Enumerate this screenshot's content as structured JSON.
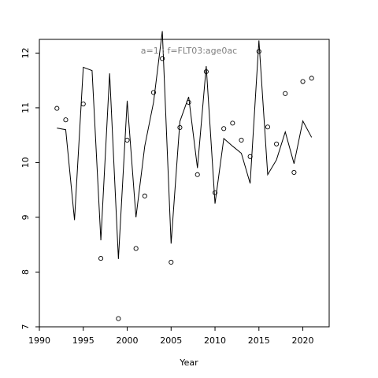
{
  "chart_data": {
    "type": "line",
    "title": "a=1  :  f=FLT03:age0ac",
    "xlabel": "Year",
    "ylabel": "",
    "xlim": [
      1990,
      2023
    ],
    "ylim": [
      7,
      12.25
    ],
    "xticks": [
      1990,
      1995,
      2000,
      2005,
      2010,
      2015,
      2020
    ],
    "yticks": [
      7,
      8,
      9,
      10,
      11,
      12
    ],
    "xtick_labels": [
      "1990",
      "1995",
      "2000",
      "2005",
      "2010",
      "2015",
      "2020"
    ],
    "ytick_labels": [
      "7",
      "8",
      "9",
      "10",
      "11",
      "12"
    ],
    "grid": false,
    "legend": "none",
    "series": [
      {
        "kind": "line",
        "color": "#000000",
        "x": [
          1992,
          1993,
          1994,
          1995,
          1996,
          1997,
          1998,
          1999,
          2000,
          2001,
          2002,
          2003,
          2004,
          2005,
          2006,
          2007,
          2008,
          2009,
          2010,
          2011,
          2012,
          2013,
          2014,
          2015,
          2016,
          2017,
          2018,
          2019,
          2020,
          2021
        ],
        "y": [
          10.63,
          10.6,
          8.95,
          11.74,
          11.68,
          8.58,
          11.63,
          8.24,
          11.13,
          9.0,
          10.3,
          11.1,
          12.4,
          8.52,
          10.75,
          11.2,
          9.9,
          11.76,
          9.25,
          10.44,
          10.3,
          10.17,
          9.62,
          12.23,
          9.78,
          10.05,
          10.56,
          9.98,
          10.76,
          10.46
        ]
      },
      {
        "kind": "points",
        "color": "#000000",
        "x": [
          1992,
          1993,
          1995,
          1997,
          1999,
          2000,
          2001,
          2002,
          2003,
          2004,
          2005,
          2006,
          2007,
          2008,
          2009,
          2010,
          2011,
          2012,
          2013,
          2014,
          2015,
          2016,
          2017,
          2018,
          2019,
          2020,
          2021
        ],
        "y": [
          10.99,
          10.78,
          11.07,
          8.25,
          7.15,
          10.41,
          8.43,
          9.39,
          11.28,
          11.9,
          8.18,
          10.64,
          11.1,
          9.78,
          11.66,
          9.45,
          10.62,
          10.72,
          10.41,
          10.11,
          12.03,
          10.65,
          10.34,
          11.26,
          9.82,
          11.48,
          11.54
        ]
      }
    ]
  }
}
